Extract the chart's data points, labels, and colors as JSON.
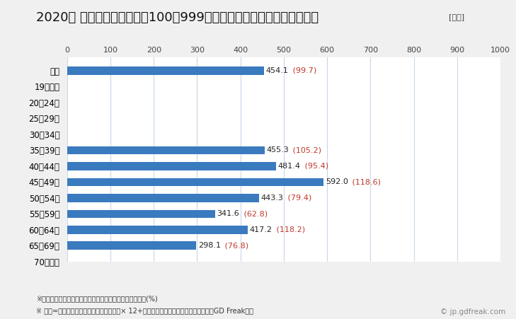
{
  "title": "2020年 民間企業（従業者数100〜999人）フルタイム労働者の平均年収",
  "unit_label": "[万円]",
  "categories": [
    "全体",
    "19歳以下",
    "20〜24歳",
    "25〜29歳",
    "30〜34歳",
    "35〜39歳",
    "40〜44歳",
    "45〜49歳",
    "50〜54歳",
    "55〜59歳",
    "60〜64歳",
    "65〜69歳",
    "70歳以上"
  ],
  "values": [
    454.1,
    null,
    null,
    null,
    null,
    455.3,
    481.4,
    592.0,
    443.3,
    341.6,
    417.2,
    298.1,
    null
  ],
  "val_texts": [
    "454.1",
    null,
    null,
    null,
    null,
    "455.3",
    "481.4",
    "592.0",
    "443.3",
    "341.6",
    "417.2",
    "298.1",
    null
  ],
  "pct_texts": [
    " (99.7)",
    null,
    null,
    null,
    null,
    " (105.2)",
    " (95.4)",
    " (118.6)",
    " (79.4)",
    " (62.8)",
    " (118.2)",
    " (76.8)",
    null
  ],
  "bar_color": "#3a7abf",
  "annotation_value_color": "#222222",
  "annotation_pct_color": "#c0392b",
  "xlim": [
    0,
    1000
  ],
  "xticks": [
    0,
    100,
    200,
    300,
    400,
    500,
    600,
    700,
    800,
    900,
    1000
  ],
  "background_color": "#f0f0f0",
  "plot_background_color": "#ffffff",
  "title_fontsize": 13,
  "footnote1": "※（）内は県内の同業種・同年齢層の平均所得に対する比(%)",
  "footnote2": "※ 年収=「きまって支給する現金給与額」× 12+「年間賞与その他特別給与額」としてGD Freak推計",
  "watermark": "© jp.gdfreak.com"
}
